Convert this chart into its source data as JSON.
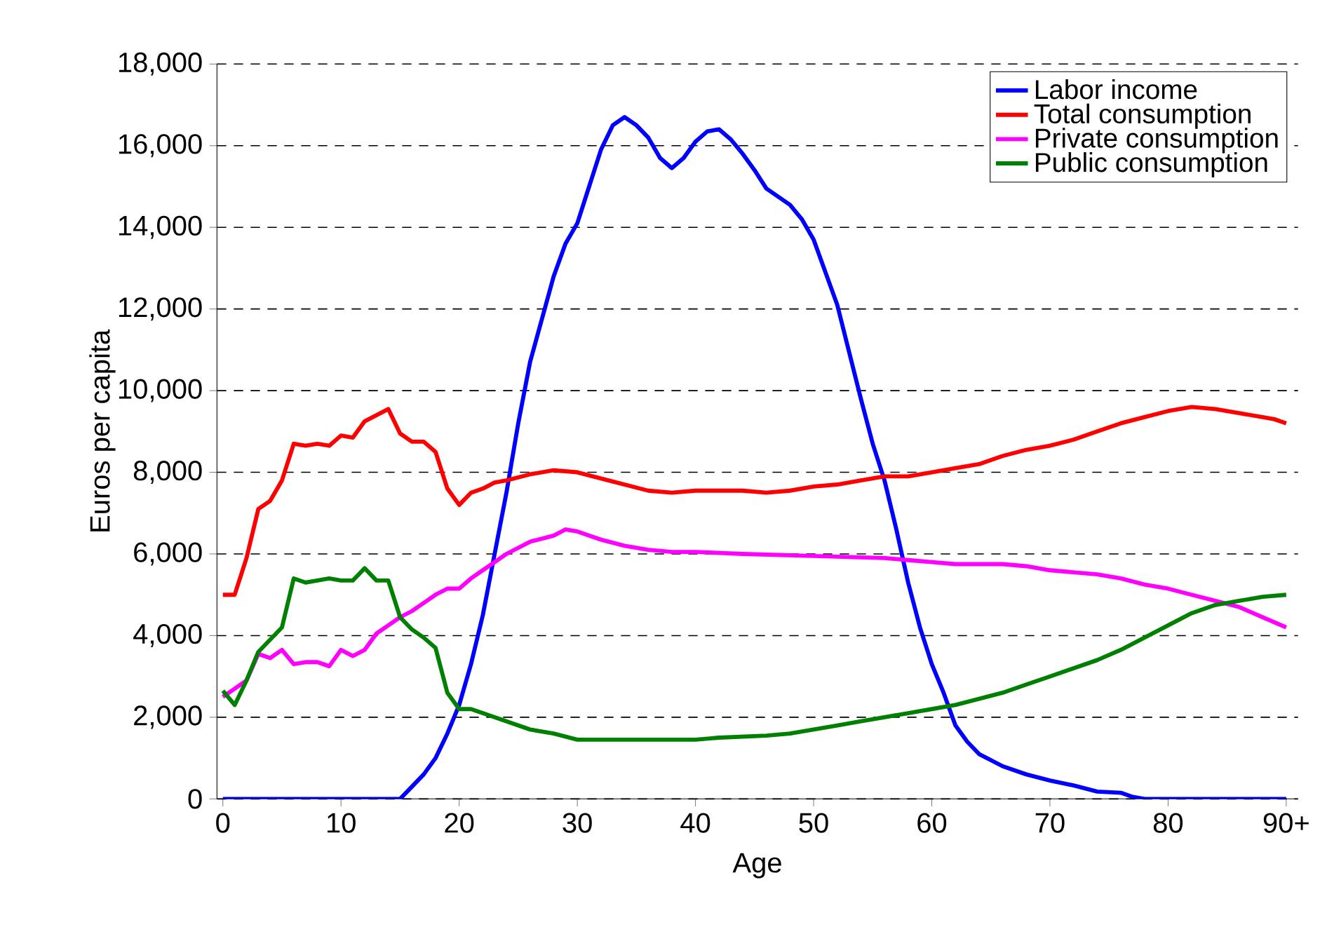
{
  "chart_data": {
    "type": "line",
    "xlabel": "Age",
    "ylabel": "Euros per capita",
    "xlim": [
      -0.5,
      91
    ],
    "ylim": [
      0,
      18000
    ],
    "xticks": [
      0,
      10,
      20,
      30,
      40,
      50,
      60,
      70,
      80,
      {
        "value": 90,
        "label": "90+"
      }
    ],
    "yticks": [
      {
        "value": 0,
        "label": "0"
      },
      {
        "value": 2000,
        "label": "2,000"
      },
      {
        "value": 4000,
        "label": "4,000"
      },
      {
        "value": 6000,
        "label": "6,000"
      },
      {
        "value": 8000,
        "label": "8,000"
      },
      {
        "value": 10000,
        "label": "10,000"
      },
      {
        "value": 12000,
        "label": "12,000"
      },
      {
        "value": 14000,
        "label": "14,000"
      },
      {
        "value": 16000,
        "label": "16,000"
      },
      {
        "value": 18000,
        "label": "18,000"
      }
    ],
    "grid": "y",
    "legend": "top right",
    "line_style": "solid",
    "marker": "none",
    "series": [
      {
        "name": "Labor income",
        "color": "#0000ff",
        "x": [
          0,
          15,
          16,
          17,
          18,
          19,
          20,
          21,
          22,
          23,
          24,
          25,
          26,
          28,
          29,
          30,
          31,
          32,
          33,
          34,
          35,
          36,
          37,
          38,
          39,
          40,
          41,
          42,
          43,
          44,
          45,
          46,
          47,
          48,
          49,
          50,
          52,
          54,
          55,
          56,
          57,
          58,
          59,
          60,
          61,
          62,
          63,
          64,
          65,
          66,
          68,
          70,
          72,
          74,
          76,
          77,
          78,
          90
        ],
        "values": [
          0,
          0,
          300,
          600,
          1000,
          1600,
          2300,
          3300,
          4500,
          6000,
          7500,
          9200,
          10700,
          12800,
          13600,
          14100,
          15000,
          15900,
          16500,
          16700,
          16500,
          16200,
          15700,
          15450,
          15700,
          16100,
          16350,
          16400,
          16150,
          15800,
          15400,
          14950,
          14750,
          14550,
          14200,
          13700,
          12100,
          9800,
          8700,
          7800,
          6600,
          5300,
          4200,
          3300,
          2600,
          1800,
          1400,
          1100,
          950,
          800,
          600,
          450,
          330,
          180,
          150,
          50,
          0,
          0
        ]
      },
      {
        "name": "Total consumption",
        "color": "#ff0000",
        "x": [
          0,
          1,
          2,
          3,
          4,
          5,
          6,
          7,
          8,
          9,
          10,
          11,
          12,
          13,
          14,
          15,
          16,
          17,
          18,
          19,
          20,
          21,
          22,
          23,
          24,
          26,
          28,
          30,
          32,
          34,
          36,
          38,
          40,
          44,
          46,
          48,
          50,
          52,
          54,
          56,
          58,
          60,
          62,
          64,
          66,
          68,
          70,
          72,
          74,
          76,
          78,
          80,
          82,
          84,
          86,
          88,
          89,
          90
        ],
        "values": [
          5000,
          5000,
          5900,
          7100,
          7300,
          7800,
          8700,
          8650,
          8700,
          8650,
          8900,
          8850,
          9250,
          9400,
          9550,
          8950,
          8750,
          8750,
          8500,
          7600,
          7200,
          7500,
          7600,
          7750,
          7800,
          7950,
          8050,
          8000,
          7850,
          7700,
          7550,
          7500,
          7550,
          7550,
          7500,
          7550,
          7650,
          7700,
          7800,
          7900,
          7900,
          8000,
          8100,
          8200,
          8400,
          8550,
          8650,
          8800,
          9000,
          9200,
          9350,
          9500,
          9600,
          9550,
          9450,
          9350,
          9300,
          9200
        ]
      },
      {
        "name": "Private consumption",
        "color": "#ff00ff",
        "x": [
          0,
          1,
          2,
          3,
          4,
          5,
          6,
          7,
          8,
          9,
          10,
          11,
          12,
          13,
          14,
          15,
          16,
          17,
          18,
          19,
          20,
          21,
          22,
          23,
          24,
          26,
          28,
          29,
          30,
          32,
          34,
          36,
          38,
          40,
          44,
          50,
          56,
          58,
          60,
          62,
          66,
          68,
          70,
          72,
          74,
          76,
          78,
          80,
          82,
          84,
          86,
          88,
          90
        ],
        "values": [
          2500,
          2700,
          2900,
          3550,
          3450,
          3650,
          3300,
          3350,
          3350,
          3250,
          3650,
          3500,
          3650,
          4050,
          4250,
          4450,
          4600,
          4800,
          5000,
          5150,
          5150,
          5400,
          5600,
          5800,
          6000,
          6300,
          6450,
          6600,
          6550,
          6350,
          6200,
          6100,
          6050,
          6050,
          6000,
          5950,
          5900,
          5850,
          5800,
          5750,
          5750,
          5700,
          5600,
          5550,
          5500,
          5400,
          5250,
          5150,
          5000,
          4850,
          4700,
          4450,
          4200
        ]
      },
      {
        "name": "Public consumption",
        "color": "#008000",
        "x": [
          0,
          1,
          2,
          3,
          4,
          5,
          6,
          7,
          8,
          9,
          10,
          11,
          12,
          13,
          14,
          15,
          16,
          17,
          18,
          19,
          20,
          21,
          22,
          24,
          26,
          28,
          30,
          34,
          40,
          42,
          46,
          48,
          50,
          52,
          54,
          56,
          58,
          60,
          62,
          64,
          66,
          68,
          70,
          72,
          74,
          76,
          78,
          80,
          82,
          84,
          86,
          88,
          90
        ],
        "values": [
          2650,
          2300,
          2900,
          3600,
          3900,
          4200,
          5400,
          5300,
          5350,
          5400,
          5350,
          5350,
          5650,
          5350,
          5350,
          4450,
          4150,
          3950,
          3700,
          2600,
          2200,
          2200,
          2100,
          1900,
          1700,
          1600,
          1450,
          1450,
          1450,
          1500,
          1550,
          1600,
          1700,
          1800,
          1900,
          2000,
          2100,
          2200,
          2300,
          2450,
          2600,
          2800,
          3000,
          3200,
          3400,
          3650,
          3950,
          4250,
          4550,
          4750,
          4850,
          4950,
          5000
        ]
      }
    ]
  }
}
